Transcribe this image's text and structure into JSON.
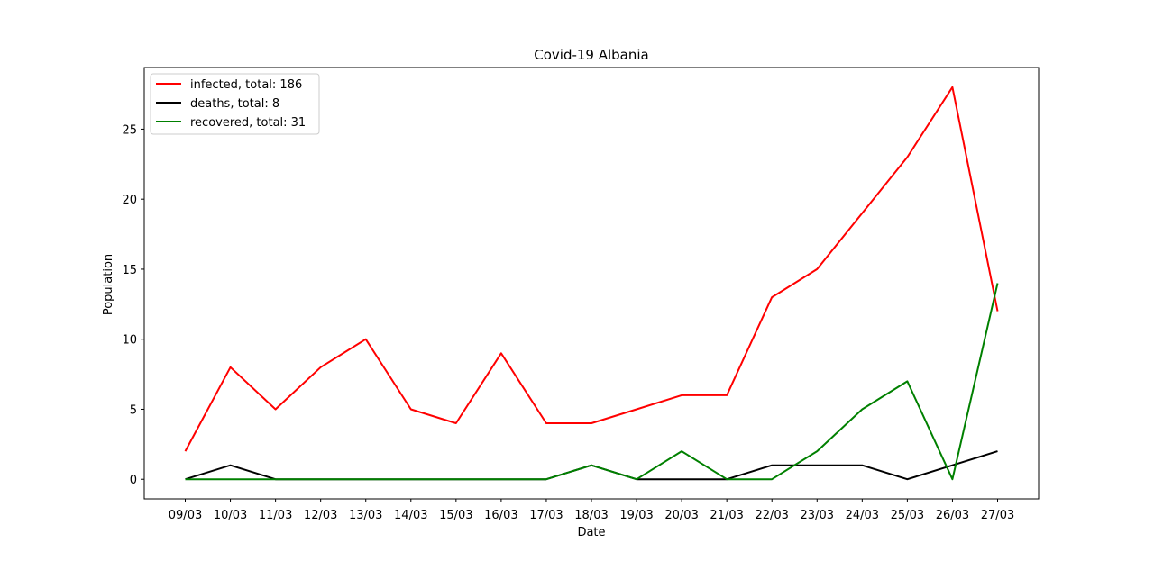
{
  "chart_data": {
    "type": "line",
    "title": "Covid-19 Albania",
    "xlabel": "Date",
    "ylabel": "Population",
    "categories": [
      "09/03",
      "10/03",
      "11/03",
      "12/03",
      "13/03",
      "14/03",
      "15/03",
      "16/03",
      "17/03",
      "18/03",
      "19/03",
      "20/03",
      "21/03",
      "22/03",
      "23/03",
      "24/03",
      "25/03",
      "26/03",
      "27/03"
    ],
    "ylim": [
      -1.4,
      29.4
    ],
    "yticks": [
      0,
      5,
      10,
      15,
      20,
      25
    ],
    "grid": false,
    "legend_position": "top-left",
    "series": [
      {
        "name": "infected, total: 186",
        "color": "#ff0000",
        "values": [
          2,
          8,
          5,
          8,
          10,
          5,
          4,
          9,
          4,
          4,
          5,
          6,
          6,
          13,
          15,
          19,
          23,
          28,
          12
        ]
      },
      {
        "name": "deaths, total: 8",
        "color": "#000000",
        "values": [
          0,
          1,
          0,
          0,
          0,
          0,
          0,
          0,
          0,
          1,
          0,
          0,
          0,
          1,
          1,
          1,
          0,
          1,
          2
        ]
      },
      {
        "name": "recovered, total: 31",
        "color": "#008000",
        "values": [
          0,
          0,
          0,
          0,
          0,
          0,
          0,
          0,
          0,
          1,
          0,
          2,
          0,
          0,
          2,
          5,
          7,
          0,
          14
        ]
      }
    ]
  }
}
